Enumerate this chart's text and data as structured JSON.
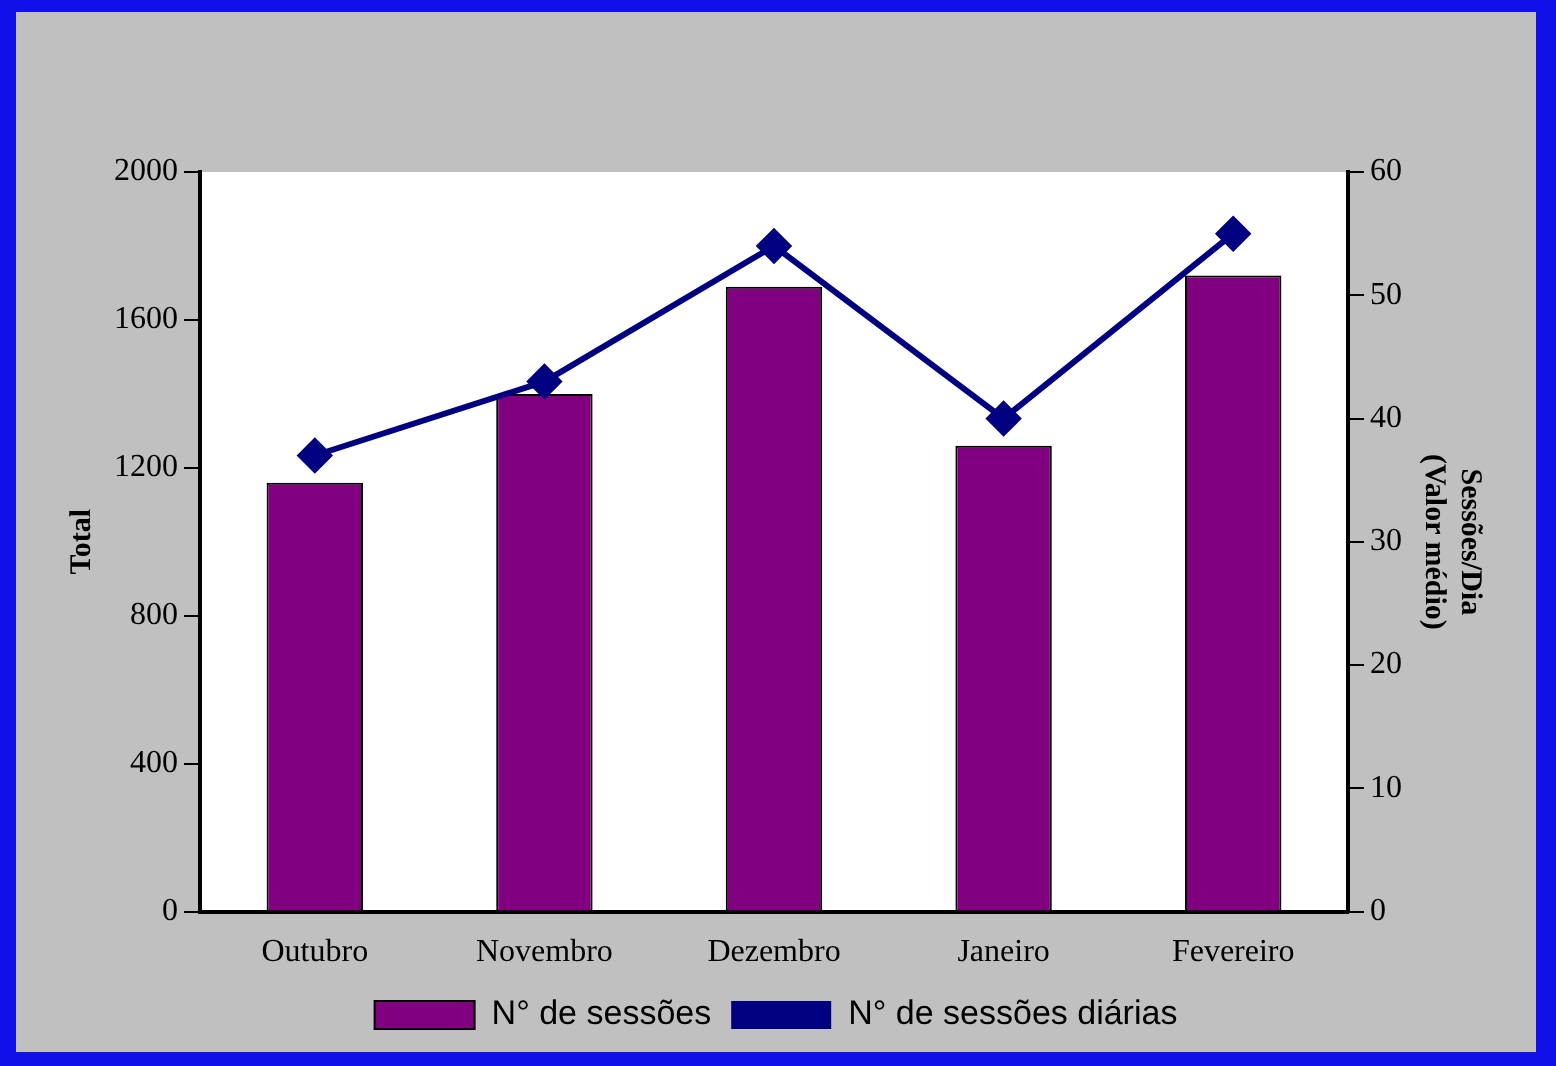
{
  "chart_data": {
    "type": "bar",
    "categories": [
      "Outubro",
      "Novembro",
      "Dezembro",
      "Janeiro",
      "Fevereiro"
    ],
    "series": [
      {
        "name": "N° de sessões",
        "color": "#800080",
        "values": [
          1160,
          1400,
          1690,
          1260,
          1720
        ]
      },
      {
        "name": "N° de sessões diárias",
        "type": "line",
        "axis": "y2",
        "color": "#000080",
        "marker": "diamond",
        "values": [
          37,
          43,
          54,
          40,
          55
        ]
      }
    ],
    "ylabel": "Total",
    "y2label": "Sessões/Dia\n(Valor médio)",
    "ylim": [
      0,
      2000
    ],
    "yticks": [
      0,
      400,
      800,
      1200,
      1600,
      2000
    ],
    "y2lim": [
      0,
      60
    ],
    "y2ticks": [
      0,
      10,
      20,
      30,
      40,
      50,
      60
    ],
    "grid": false,
    "legend": "bottom"
  }
}
